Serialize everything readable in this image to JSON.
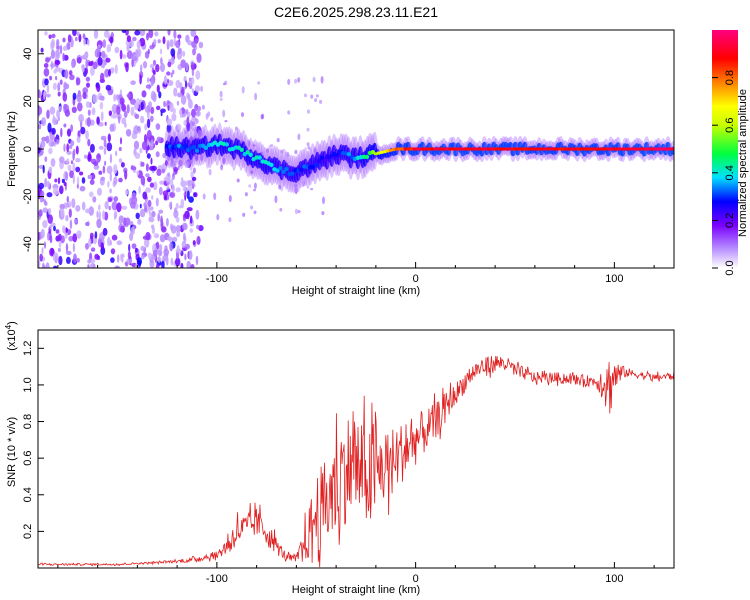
{
  "title": "C2E6.2025.298.23.11.E21",
  "chart_data": [
    {
      "type": "heatmap",
      "xlabel": "Height of straight line (km)",
      "ylabel": "Frequency (Hz)",
      "xlim": [
        -190,
        130
      ],
      "ylim": [
        -50,
        50
      ],
      "xticks": [
        -100,
        0,
        100
      ],
      "yticks": [
        -40,
        -20,
        0,
        20,
        40
      ],
      "colorbar": {
        "label": "Normalized spectral amplitude",
        "range": [
          0,
          1
        ],
        "ticks": [
          "0.0",
          "0.2",
          "0.4",
          "0.6",
          "0.8"
        ],
        "colors": [
          "#ffffff",
          "#b890ff",
          "#7a00ff",
          "#0000ff",
          "#00e0ff",
          "#00ff40",
          "#ffff00",
          "#ff8000",
          "#ff0000",
          "#ff0080"
        ]
      },
      "ridge": {
        "x": [
          -125,
          -110,
          -100,
          -90,
          -80,
          -70,
          -62,
          -55,
          -45,
          -38,
          -30,
          -20,
          -10,
          0,
          20,
          40,
          60,
          80,
          95,
          100,
          130
        ],
        "freq": [
          1,
          0,
          2,
          0,
          -4,
          -8,
          -10,
          -8,
          -4,
          -2,
          -4,
          -2,
          0,
          0,
          0,
          0,
          0,
          0,
          0,
          0,
          0
        ],
        "amplitude": [
          0.3,
          0.35,
          0.4,
          0.4,
          0.4,
          0.35,
          0.3,
          0.3,
          0.25,
          0.3,
          0.35,
          0.6,
          0.8,
          0.9,
          0.92,
          0.9,
          0.9,
          0.9,
          0.88,
          0.92,
          0.95
        ]
      },
      "noise_region_x": [
        -190,
        -120
      ]
    },
    {
      "type": "line",
      "xlabel": "Height of straight line (km)",
      "ylabel": "SNR (10 * v/v)",
      "multiplier": "(x10",
      "multiplier_exp": "4",
      "multiplier_close": ")",
      "xlim": [
        -190,
        130
      ],
      "ylim": [
        0,
        1.3
      ],
      "xticks": [
        -100,
        0,
        100
      ],
      "yticks": [
        "0.2",
        "0.4",
        "0.6",
        "0.8",
        "1.0",
        "1.2"
      ],
      "color": "#e02020",
      "series_x": [
        -190,
        -170,
        -150,
        -130,
        -115,
        -100,
        -95,
        -90,
        -85,
        -80,
        -75,
        -70,
        -65,
        -60,
        -55,
        -50,
        -45,
        -40,
        -35,
        -30,
        -25,
        -20,
        -15,
        -10,
        -5,
        0,
        5,
        10,
        15,
        20,
        25,
        30,
        35,
        40,
        45,
        50,
        60,
        70,
        80,
        90,
        95,
        98,
        100,
        105,
        110,
        120,
        130
      ],
      "series_y": [
        0.02,
        0.02,
        0.02,
        0.03,
        0.04,
        0.07,
        0.12,
        0.2,
        0.22,
        0.25,
        0.2,
        0.12,
        0.06,
        0.05,
        0.15,
        0.3,
        0.35,
        0.45,
        0.55,
        0.55,
        0.5,
        0.52,
        0.55,
        0.6,
        0.65,
        0.7,
        0.75,
        0.8,
        0.88,
        0.95,
        1.02,
        1.08,
        1.1,
        1.12,
        1.12,
        1.08,
        1.04,
        1.04,
        1.03,
        1.02,
        1.02,
        1.0,
        1.05,
        1.07,
        1.06,
        1.04,
        1.05
      ],
      "noise_amplitude": [
        0.005,
        0.005,
        0.005,
        0.005,
        0.01,
        0.02,
        0.05,
        0.08,
        0.08,
        0.08,
        0.07,
        0.05,
        0.02,
        0.02,
        0.12,
        0.22,
        0.25,
        0.3,
        0.3,
        0.3,
        0.28,
        0.25,
        0.2,
        0.18,
        0.16,
        0.14,
        0.12,
        0.1,
        0.08,
        0.06,
        0.06,
        0.05,
        0.05,
        0.05,
        0.04,
        0.04,
        0.03,
        0.03,
        0.03,
        0.03,
        0.1,
        0.18,
        0.1,
        0.03,
        0.02,
        0.02,
        0.02
      ]
    }
  ]
}
